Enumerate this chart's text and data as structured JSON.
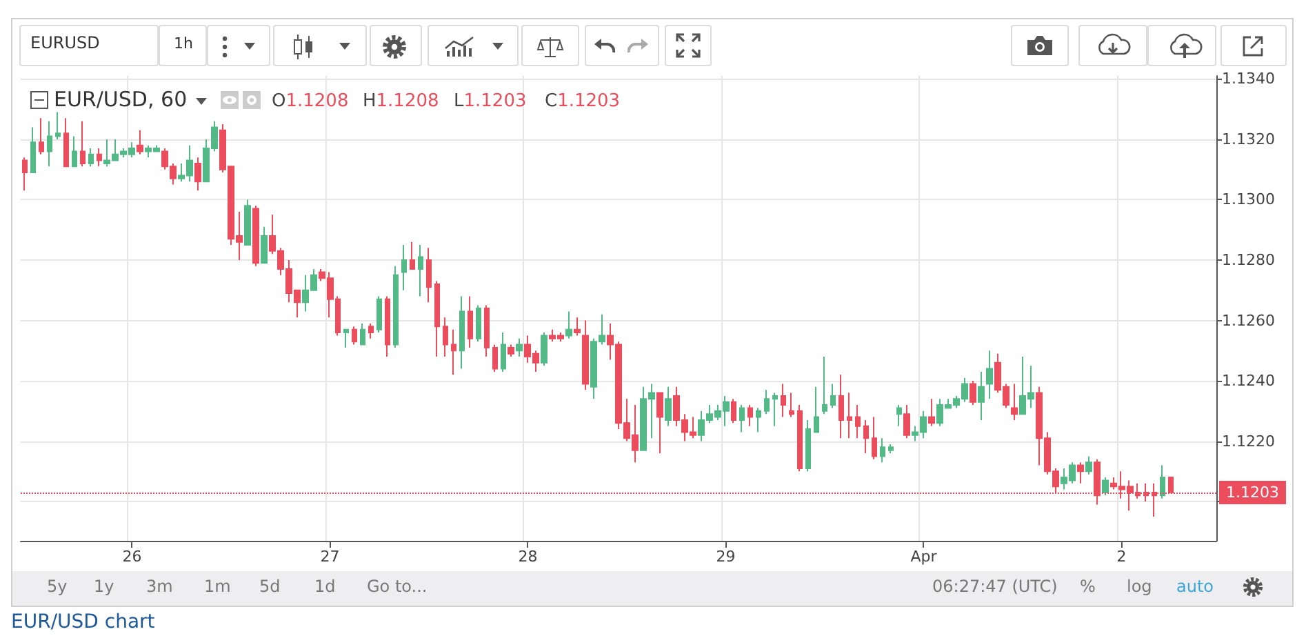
{
  "chart_data": {
    "type": "candlestick",
    "title": "EUR/USD, 60",
    "categories": [
      null,
      null,
      null,
      null,
      null,
      null,
      null,
      null,
      null,
      null,
      null,
      null,
      null,
      "26",
      null,
      null,
      null,
      null,
      null,
      null,
      null,
      null,
      null,
      null,
      null,
      null,
      null,
      null,
      null,
      null,
      null,
      null,
      null,
      null,
      null,
      null,
      null,
      "27",
      null,
      null,
      null,
      null,
      null,
      null,
      null,
      null,
      null,
      null,
      null,
      null,
      null,
      null,
      null,
      null,
      null,
      null,
      null,
      null,
      null,
      null,
      null,
      "28",
      null,
      null,
      null,
      null,
      null,
      null,
      null,
      null,
      null,
      null,
      null,
      null,
      null,
      null,
      null,
      null,
      null,
      null,
      null,
      null,
      null,
      null,
      null,
      "29",
      null,
      null,
      null,
      null,
      null,
      null,
      null,
      null,
      null,
      null,
      null,
      null,
      null,
      null,
      null,
      null,
      null,
      null,
      null,
      null,
      null,
      null,
      null,
      "Apr",
      null,
      null,
      null,
      null,
      null,
      null,
      null,
      null,
      null,
      null,
      null,
      null,
      null,
      null,
      null,
      null,
      null,
      null,
      null,
      null,
      null,
      null,
      null,
      "2",
      null,
      null,
      null,
      null,
      null,
      null
    ],
    "ohlc": [
      [
        1.1313,
        1.1314,
        1.1303,
        1.1309
      ],
      [
        1.1309,
        1.1324,
        1.1309,
        1.1319
      ],
      [
        1.1319,
        1.1327,
        1.1315,
        1.1316
      ],
      [
        1.1316,
        1.1326,
        1.1311,
        1.1321
      ],
      [
        1.1321,
        1.1329,
        1.132,
        1.1322
      ],
      [
        1.1322,
        1.1327,
        1.1311,
        1.1311
      ],
      [
        1.1311,
        1.1321,
        1.1311,
        1.1316
      ],
      [
        1.1316,
        1.1326,
        1.1311,
        1.1312
      ],
      [
        1.1312,
        1.1317,
        1.1311,
        1.1315
      ],
      [
        1.1315,
        1.1317,
        1.1311,
        1.1313
      ],
      [
        1.1312,
        1.132,
        1.1311,
        1.1313
      ],
      [
        1.1313,
        1.132,
        1.1313,
        1.1315
      ],
      [
        1.1315,
        1.1317,
        1.1314,
        1.1316
      ],
      [
        1.1315,
        1.1319,
        1.1314,
        1.1317
      ],
      [
        1.1318,
        1.1323,
        1.1315,
        1.1316
      ],
      [
        1.1316,
        1.1318,
        1.1314,
        1.1317
      ],
      [
        1.1316,
        1.1318,
        1.1316,
        1.1317
      ],
      [
        1.1316,
        1.1317,
        1.131,
        1.1311
      ],
      [
        1.1311,
        1.1312,
        1.1305,
        1.1307
      ],
      [
        1.1307,
        1.1312,
        1.1306,
        1.1308
      ],
      [
        1.1308,
        1.1318,
        1.1306,
        1.1313
      ],
      [
        1.1312,
        1.1314,
        1.1303,
        1.1306
      ],
      [
        1.1306,
        1.132,
        1.1306,
        1.1317
      ],
      [
        1.1317,
        1.1326,
        1.1316,
        1.1324
      ],
      [
        1.1323,
        1.1325,
        1.1309,
        1.131
      ],
      [
        1.1311,
        1.1311,
        1.1285,
        1.1287
      ],
      [
        1.1288,
        1.1296,
        1.128,
        1.1286
      ],
      [
        1.1285,
        1.13,
        1.1285,
        1.1298
      ],
      [
        1.1297,
        1.1298,
        1.1278,
        1.1279
      ],
      [
        1.1279,
        1.1291,
        1.1279,
        1.1288
      ],
      [
        1.1288,
        1.1295,
        1.1282,
        1.1283
      ],
      [
        1.1283,
        1.1284,
        1.1275,
        1.1277
      ],
      [
        1.1277,
        1.128,
        1.1266,
        1.1269
      ],
      [
        1.127,
        1.127,
        1.1261,
        1.1266
      ],
      [
        1.1266,
        1.1275,
        1.1263,
        1.127
      ],
      [
        1.127,
        1.1277,
        1.127,
        1.1275
      ],
      [
        1.1276,
        1.1277,
        1.1273,
        1.1274
      ],
      [
        1.1274,
        1.1276,
        1.1261,
        1.1267
      ],
      [
        1.1267,
        1.1268,
        1.1255,
        1.1256
      ],
      [
        1.1256,
        1.1257,
        1.1251,
        1.1257
      ],
      [
        1.1257,
        1.1258,
        1.1252,
        1.1253
      ],
      [
        1.1252,
        1.1259,
        1.1252,
        1.1257
      ],
      [
        1.1258,
        1.1259,
        1.1254,
        1.1256
      ],
      [
        1.1257,
        1.1268,
        1.1256,
        1.1267
      ],
      [
        1.1267,
        1.1268,
        1.1248,
        1.1252
      ],
      [
        1.1252,
        1.1278,
        1.1251,
        1.1275
      ],
      [
        1.1276,
        1.1285,
        1.127,
        1.128
      ],
      [
        1.128,
        1.1286,
        1.1277,
        1.1277
      ],
      [
        1.1277,
        1.1285,
        1.1268,
        1.1281
      ],
      [
        1.128,
        1.1284,
        1.1266,
        1.1271
      ],
      [
        1.1272,
        1.1273,
        1.1248,
        1.1258
      ],
      [
        1.1258,
        1.1261,
        1.1248,
        1.1252
      ],
      [
        1.1252,
        1.1257,
        1.1242,
        1.125
      ],
      [
        1.125,
        1.1268,
        1.1244,
        1.1263
      ],
      [
        1.1263,
        1.1268,
        1.1251,
        1.1254
      ],
      [
        1.1254,
        1.1265,
        1.1253,
        1.1264
      ],
      [
        1.1264,
        1.1265,
        1.1248,
        1.1251
      ],
      [
        1.1251,
        1.1252,
        1.1243,
        1.1244
      ],
      [
        1.1244,
        1.1256,
        1.1243,
        1.1252
      ],
      [
        1.1251,
        1.1252,
        1.1248,
        1.1249
      ],
      [
        1.125,
        1.1254,
        1.1248,
        1.1252
      ],
      [
        1.1252,
        1.1255,
        1.1246,
        1.1248
      ],
      [
        1.1249,
        1.125,
        1.1243,
        1.1246
      ],
      [
        1.1246,
        1.1256,
        1.1245,
        1.1255
      ],
      [
        1.1255,
        1.1257,
        1.1253,
        1.1254
      ],
      [
        1.1255,
        1.1256,
        1.1253,
        1.1254
      ],
      [
        1.1255,
        1.1263,
        1.1254,
        1.1257
      ],
      [
        1.1257,
        1.1261,
        1.1255,
        1.1256
      ],
      [
        1.1255,
        1.126,
        1.1237,
        1.1239
      ],
      [
        1.1238,
        1.1254,
        1.1234,
        1.1253
      ],
      [
        1.1253,
        1.1262,
        1.1252,
        1.1255
      ],
      [
        1.1255,
        1.1259,
        1.1247,
        1.1252
      ],
      [
        1.1252,
        1.1253,
        1.1224,
        1.1226
      ],
      [
        1.1226,
        1.1234,
        1.122,
        1.1221
      ],
      [
        1.1222,
        1.1232,
        1.1213,
        1.1217
      ],
      [
        1.1217,
        1.1238,
        1.1217,
        1.1234
      ],
      [
        1.1234,
        1.1239,
        1.1221,
        1.1236
      ],
      [
        1.1236,
        1.1236,
        1.1216,
        1.1228
      ],
      [
        1.1227,
        1.1238,
        1.1225,
        1.1234
      ],
      [
        1.1235,
        1.1238,
        1.1225,
        1.1227
      ],
      [
        1.1227,
        1.1229,
        1.122,
        1.1223
      ],
      [
        1.1223,
        1.1228,
        1.1221,
        1.1222
      ],
      [
        1.1222,
        1.123,
        1.122,
        1.1227
      ],
      [
        1.1227,
        1.1232,
        1.1226,
        1.1229
      ],
      [
        1.1228,
        1.1232,
        1.1227,
        1.123
      ],
      [
        1.123,
        1.1235,
        1.1225,
        1.1233
      ],
      [
        1.1233,
        1.1234,
        1.1226,
        1.1227
      ],
      [
        1.1227,
        1.1232,
        1.1223,
        1.1231
      ],
      [
        1.1231,
        1.1232,
        1.1225,
        1.1228
      ],
      [
        1.1228,
        1.1231,
        1.1223,
        1.123
      ],
      [
        1.123,
        1.1237,
        1.1229,
        1.1234
      ],
      [
        1.1234,
        1.1236,
        1.1225,
        1.1235
      ],
      [
        1.1235,
        1.1239,
        1.1228,
        1.1232
      ],
      [
        1.123,
        1.1236,
        1.1228,
        1.1229
      ],
      [
        1.123,
        1.1232,
        1.121,
        1.1211
      ],
      [
        1.1211,
        1.1227,
        1.121,
        1.1224
      ],
      [
        1.1223,
        1.1238,
        1.1223,
        1.1228
      ],
      [
        1.123,
        1.1248,
        1.1229,
        1.1232
      ],
      [
        1.1232,
        1.1239,
        1.1231,
        1.1235
      ],
      [
        1.1235,
        1.1242,
        1.1221,
        1.1227
      ],
      [
        1.1228,
        1.1236,
        1.1221,
        1.1227
      ],
      [
        1.1228,
        1.1232,
        1.1221,
        1.1225
      ],
      [
        1.1225,
        1.1227,
        1.1216,
        1.1221
      ],
      [
        1.1221,
        1.1228,
        1.1214,
        1.1215
      ],
      [
        1.1215,
        1.1221,
        1.1213,
        1.1218
      ],
      [
        1.1217,
        1.1219,
        1.1216,
        1.1218
      ],
      [
        1.1229,
        1.1232,
        1.1225,
        1.1231
      ],
      [
        1.1229,
        1.1232,
        1.1221,
        1.1222
      ],
      [
        1.1222,
        1.1225,
        1.122,
        1.1223
      ],
      [
        1.1223,
        1.123,
        1.1221,
        1.1228
      ],
      [
        1.1228,
        1.1234,
        1.1225,
        1.1226
      ],
      [
        1.1226,
        1.1234,
        1.1225,
        1.1232
      ],
      [
        1.1231,
        1.1234,
        1.1231,
        1.1232
      ],
      [
        1.1232,
        1.1235,
        1.1231,
        1.1234
      ],
      [
        1.1234,
        1.1241,
        1.1233,
        1.1239
      ],
      [
        1.1239,
        1.124,
        1.1232,
        1.1233
      ],
      [
        1.1233,
        1.1243,
        1.1227,
        1.1238
      ],
      [
        1.1239,
        1.125,
        1.1234,
        1.1244
      ],
      [
        1.1246,
        1.1249,
        1.1236,
        1.1237
      ],
      [
        1.1238,
        1.1239,
        1.1231,
        1.1232
      ],
      [
        1.1231,
        1.1239,
        1.1227,
        1.1229
      ],
      [
        1.1229,
        1.1248,
        1.1229,
        1.1235
      ],
      [
        1.1234,
        1.1245,
        1.1231,
        1.1236
      ],
      [
        1.1236,
        1.1238,
        1.1212,
        1.1221
      ],
      [
        1.1221,
        1.1223,
        1.1209,
        1.121
      ],
      [
        1.121,
        1.1211,
        1.1203,
        1.1205
      ],
      [
        1.1206,
        1.1211,
        1.1204,
        1.1208
      ],
      [
        1.1207,
        1.1213,
        1.1206,
        1.1212
      ],
      [
        1.1212,
        1.1213,
        1.1206,
        1.121
      ],
      [
        1.121,
        1.1215,
        1.1209,
        1.1213
      ],
      [
        1.1213,
        1.1214,
        1.1199,
        1.1202
      ],
      [
        1.1203,
        1.1208,
        1.1202,
        1.1207
      ],
      [
        1.1206,
        1.1208,
        1.1204,
        1.1205
      ],
      [
        1.1205,
        1.121,
        1.1201,
        1.1204
      ],
      [
        1.1205,
        1.1207,
        1.1197,
        1.1203
      ],
      [
        1.1203,
        1.1206,
        1.1201,
        1.1202
      ],
      [
        1.1203,
        1.1206,
        1.12,
        1.1202
      ],
      [
        1.1203,
        1.1206,
        1.1195,
        1.1202
      ],
      [
        1.1202,
        1.1212,
        1.1201,
        1.1208
      ],
      [
        1.1208,
        1.1208,
        1.1203,
        1.1203
      ]
    ],
    "ylim": [
      1.1187,
      1.1341
    ],
    "yticks": [
      {
        "value": 1.12,
        "label": null
      },
      {
        "value": 1.122,
        "label": "1.1220"
      },
      {
        "value": 1.124,
        "label": "1.1240"
      },
      {
        "value": 1.126,
        "label": "1.1260"
      },
      {
        "value": 1.128,
        "label": "1.1280"
      },
      {
        "value": 1.13,
        "label": "1.1300"
      },
      {
        "value": 1.132,
        "label": "1.1320"
      },
      {
        "value": 1.134,
        "label": "1.1340"
      }
    ],
    "ref_lines": [
      {
        "axis": "y",
        "value": 1.1203,
        "label": "1.1203",
        "color": "#eb4d5c",
        "line_style": "dotted"
      }
    ],
    "grid": true,
    "annotations": [
      "O1.1208",
      "H1.1208",
      "L1.1203",
      "C1.1203",
      "EURUSD",
      "1h",
      "5y",
      "1y",
      "3m",
      "1m",
      "5d",
      "1d",
      "Go to...",
      "06:27:47 (UTC)",
      "%",
      "log",
      "auto",
      "EUR/USD chart"
    ]
  }
}
